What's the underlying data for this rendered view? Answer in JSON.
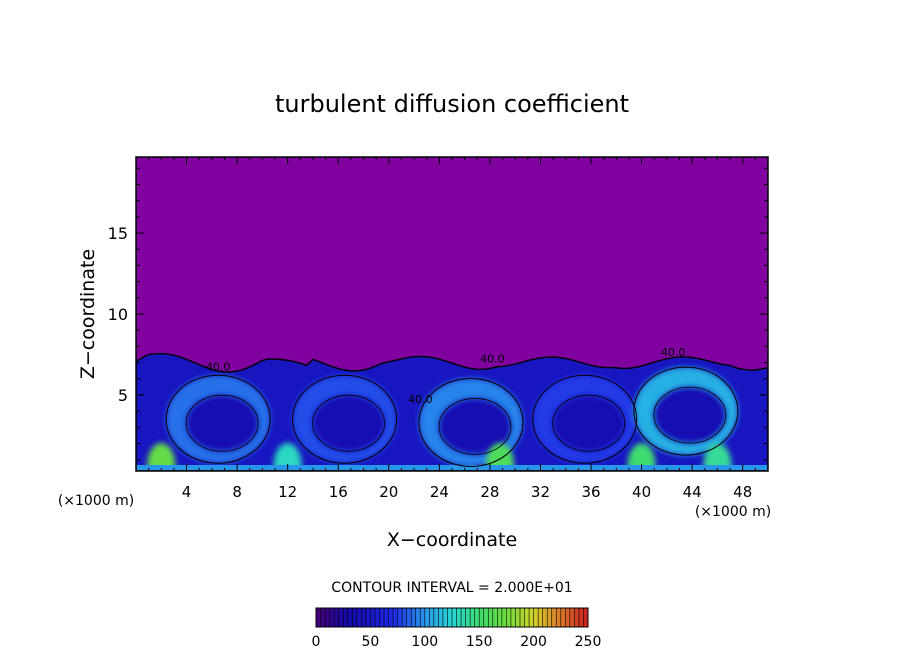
{
  "chart_data": {
    "type": "heatmap",
    "title": "turbulent diffusion coefficient",
    "xlabel": "X−coordinate",
    "ylabel": "Z−coordinate",
    "x_unit_left": "(×1000 m)",
    "x_unit_right": "(×1000 m)",
    "xlim": [
      0,
      50
    ],
    "ylim": [
      0.3,
      19.7
    ],
    "x_ticks": [
      4,
      8,
      12,
      16,
      20,
      24,
      28,
      32,
      36,
      40,
      44,
      48
    ],
    "y_ticks": [
      5,
      10,
      15
    ],
    "contour_interval_text": "CONTOUR INTERVAL = 2.000E+01",
    "contour_labels": [
      {
        "text": "40.0",
        "x": 6.5,
        "z": 6.5
      },
      {
        "text": "40.0",
        "x": 28.2,
        "z": 7.0
      },
      {
        "text": "40.0",
        "x": 42.5,
        "z": 7.4
      },
      {
        "text": "40.0",
        "x": 22.5,
        "z": 4.5
      }
    ],
    "colorbar": {
      "min": 0,
      "max": 250,
      "tick_labels": [
        "0",
        "50",
        "100",
        "150",
        "200",
        "250"
      ],
      "tick_values": [
        0,
        50,
        100,
        150,
        200,
        250
      ]
    },
    "background_value": 0,
    "turbulent_layer_top_z": 7.2,
    "eddy_cells": [
      {
        "x_center": 6.5,
        "z_center": 3.5,
        "peak_value": 90
      },
      {
        "x_center": 16.5,
        "z_center": 3.5,
        "peak_value": 80
      },
      {
        "x_center": 26.5,
        "z_center": 3.3,
        "peak_value": 95
      },
      {
        "x_center": 35.5,
        "z_center": 3.5,
        "peak_value": 75
      },
      {
        "x_center": 43.5,
        "z_center": 4.0,
        "peak_value": 110
      }
    ],
    "surface_hotspots": [
      {
        "x": 2.0,
        "value": 170
      },
      {
        "x": 12.0,
        "value": 130
      },
      {
        "x": 28.8,
        "value": 160
      },
      {
        "x": 40.0,
        "value": 150
      },
      {
        "x": 46.0,
        "value": 140
      }
    ],
    "colors": {
      "background": "#8000a0",
      "frame": "#000000"
    }
  }
}
